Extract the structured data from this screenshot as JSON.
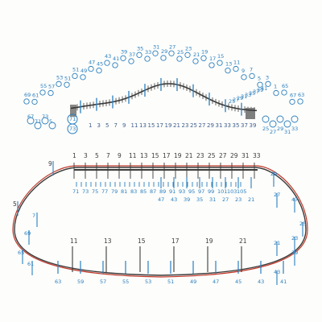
{
  "colors": {
    "pencil": "#3a3a3a",
    "blue": "#2a7fc0",
    "red": "#c0392b",
    "paper": "#fdfdfb"
  },
  "top_strip": {
    "upper_labels": [
      "69",
      "61",
      "55",
      "57",
      "53",
      "51",
      "51",
      "49",
      "47",
      "45",
      "43",
      "41",
      "39",
      "37",
      "35",
      "33",
      "31",
      "29",
      "27",
      "25",
      "23",
      "21",
      "19",
      "17",
      "15",
      "13",
      "11",
      "9",
      "7",
      "5",
      "3",
      "1",
      "65",
      "67",
      "63"
    ],
    "circled_labels": [
      "71",
      "73"
    ],
    "axis_labels": [
      "1",
      "3",
      "5",
      "7",
      "9",
      "11",
      "13",
      "15",
      "17",
      "19",
      "21",
      "23",
      "25",
      "27",
      "29",
      "31",
      "33",
      "35",
      "37",
      "39"
    ],
    "right_labels": [
      "25",
      "27",
      "29",
      "31",
      "33",
      "35",
      "37",
      "39",
      "41"
    ],
    "cluster_left": [
      "67",
      "71",
      "73",
      "5"
    ],
    "cluster_right": [
      "25",
      "27",
      "29",
      "31",
      "33"
    ]
  },
  "bottom_shape": {
    "top_labels": [
      "1",
      "3",
      "5",
      "7",
      "9",
      "11",
      "13",
      "15",
      "17",
      "19",
      "21",
      "23",
      "25",
      "27",
      "29",
      "31",
      "33"
    ],
    "inner_labels": [
      "71",
      "73",
      "75",
      "77",
      "79",
      "81",
      "83",
      "85",
      "87",
      "89",
      "91",
      "93",
      "95",
      "97",
      "99",
      "101",
      "103",
      "105"
    ],
    "inner_numbers": [
      "47",
      "43",
      "39",
      "35",
      "31",
      "27",
      "23",
      "21"
    ],
    "left_labels": [
      "9",
      "5",
      "7",
      "69",
      "65",
      "61"
    ],
    "right_labels": [
      "29",
      "27",
      "25",
      "23",
      "21",
      "47",
      "43",
      "39"
    ],
    "bottom_labels": [
      "11",
      "13",
      "15",
      "17",
      "19",
      "21",
      "63",
      "59",
      "57",
      "55",
      "53",
      "51",
      "49",
      "47",
      "45",
      "43",
      "41"
    ]
  }
}
